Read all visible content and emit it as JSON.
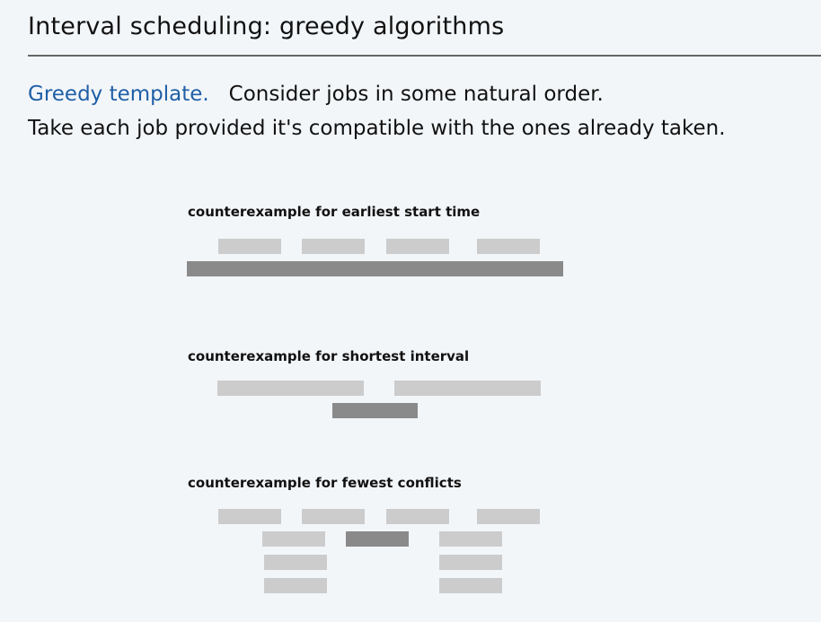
{
  "title": "Interval scheduling:  greedy algorithms",
  "template": {
    "label": "Greedy template.",
    "line1_rest": "Consider jobs in some natural order.",
    "line2": "Take each job provided it's compatible with the ones already taken."
  },
  "counterexamples": [
    {
      "label": "counterexample for earliest start time",
      "jobs": [
        {
          "start": 243,
          "end": 313,
          "row": 0,
          "shade": "light"
        },
        {
          "start": 336,
          "end": 406,
          "row": 0,
          "shade": "light"
        },
        {
          "start": 430,
          "end": 500,
          "row": 0,
          "shade": "light"
        },
        {
          "start": 531,
          "end": 601,
          "row": 0,
          "shade": "light"
        },
        {
          "start": 208,
          "end": 627,
          "row": 1,
          "shade": "dark"
        }
      ]
    },
    {
      "label": "counterexample for shortest interval",
      "jobs": [
        {
          "start": 242,
          "end": 405,
          "row": 0,
          "shade": "light"
        },
        {
          "start": 439,
          "end": 602,
          "row": 0,
          "shade": "light"
        },
        {
          "start": 370,
          "end": 465,
          "row": 1,
          "shade": "dark"
        }
      ]
    },
    {
      "label": "counterexample for fewest conflicts",
      "jobs": [
        {
          "start": 243,
          "end": 313,
          "row": 0,
          "shade": "light"
        },
        {
          "start": 336,
          "end": 406,
          "row": 0,
          "shade": "light"
        },
        {
          "start": 430,
          "end": 500,
          "row": 0,
          "shade": "light"
        },
        {
          "start": 531,
          "end": 601,
          "row": 0,
          "shade": "light"
        },
        {
          "start": 292,
          "end": 362,
          "row": 1,
          "shade": "light"
        },
        {
          "start": 385,
          "end": 455,
          "row": 1,
          "shade": "dark"
        },
        {
          "start": 489,
          "end": 559,
          "row": 1,
          "shade": "light"
        },
        {
          "start": 294,
          "end": 364,
          "row": 2,
          "shade": "light"
        },
        {
          "start": 489,
          "end": 559,
          "row": 2,
          "shade": "light"
        },
        {
          "start": 294,
          "end": 364,
          "row": 3,
          "shade": "light"
        },
        {
          "start": 489,
          "end": 559,
          "row": 3,
          "shade": "light"
        }
      ]
    }
  ],
  "colors": {
    "background": "#f3f6f9",
    "highlight": "#1f5fa6",
    "job_light": "#cccccc",
    "job_dark": "#8a8a8a",
    "rule": "#666666"
  }
}
